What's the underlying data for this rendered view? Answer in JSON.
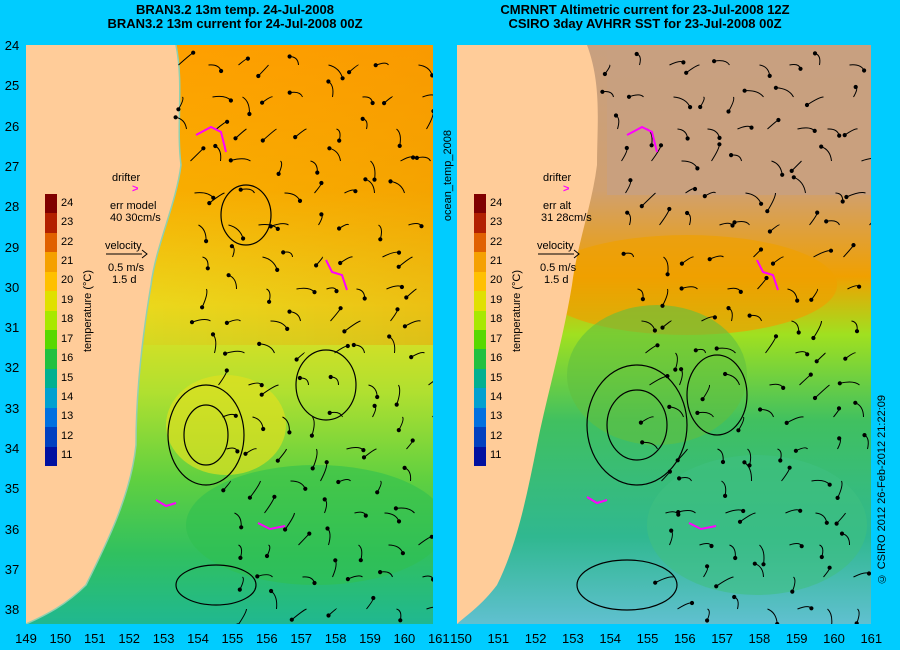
{
  "titles": {
    "left_line1": "BRAN3.2 13m temp. 24-Jul-2008",
    "left_line2": "BRAN3.2 13m current for 24-Jul-2008 00Z",
    "right_line1": "CMRNRT Altimetric current for 23-Jul-2008 12Z",
    "right_line2": "CSIRO 3day AVHRR SST for 23-Jul-2008 00Z"
  },
  "y_ticks": [
    "24",
    "25",
    "26",
    "27",
    "28",
    "29",
    "30",
    "31",
    "32",
    "33",
    "34",
    "35",
    "36",
    "37",
    "38"
  ],
  "x_ticks_left": [
    "149",
    "150",
    "151",
    "152",
    "153",
    "154",
    "155",
    "156",
    "157",
    "158",
    "159",
    "160",
    "161"
  ],
  "x_ticks_right": [
    "150",
    "151",
    "152",
    "153",
    "154",
    "155",
    "156",
    "157",
    "158",
    "159",
    "160",
    "161"
  ],
  "left_legend": {
    "drifter_label": "drifter",
    "drifter_symbol": ">",
    "err_line1": "err model",
    "err_line2": "40 30cm/s",
    "velocity_label": "velocity",
    "speed": "0.5 m/s",
    "duration": "1.5 d"
  },
  "right_legend": {
    "drifter_label": "drifter",
    "drifter_symbol": ">",
    "err_line1": "err alt",
    "err_line2": "31 28cm/s",
    "velocity_label": "velocity",
    "speed": "0.5 m/s",
    "duration": "1.5 d"
  },
  "colorbar": {
    "labels": [
      "24",
      "23",
      "22",
      "21",
      "20",
      "19",
      "18",
      "17",
      "16",
      "15",
      "14",
      "13",
      "12",
      "11"
    ],
    "colors": [
      "#800000",
      "#b22000",
      "#e06000",
      "#f5a000",
      "#ffc000",
      "#e0e000",
      "#a8e800",
      "#58d800",
      "#20c040",
      "#00b090",
      "#00a0d0",
      "#0070e0",
      "#0040c0",
      "#0010a0"
    ],
    "unit_label": "temperature (°C)"
  },
  "side_label": "ocean_temp_2008",
  "credit": "© CSIRO 2012  26-Feb-2012 21:22:09",
  "colors": {
    "background": "#00ccff",
    "land": "#ffcc99",
    "cloud": "#c8a080",
    "drifter": "#ff00ff"
  }
}
